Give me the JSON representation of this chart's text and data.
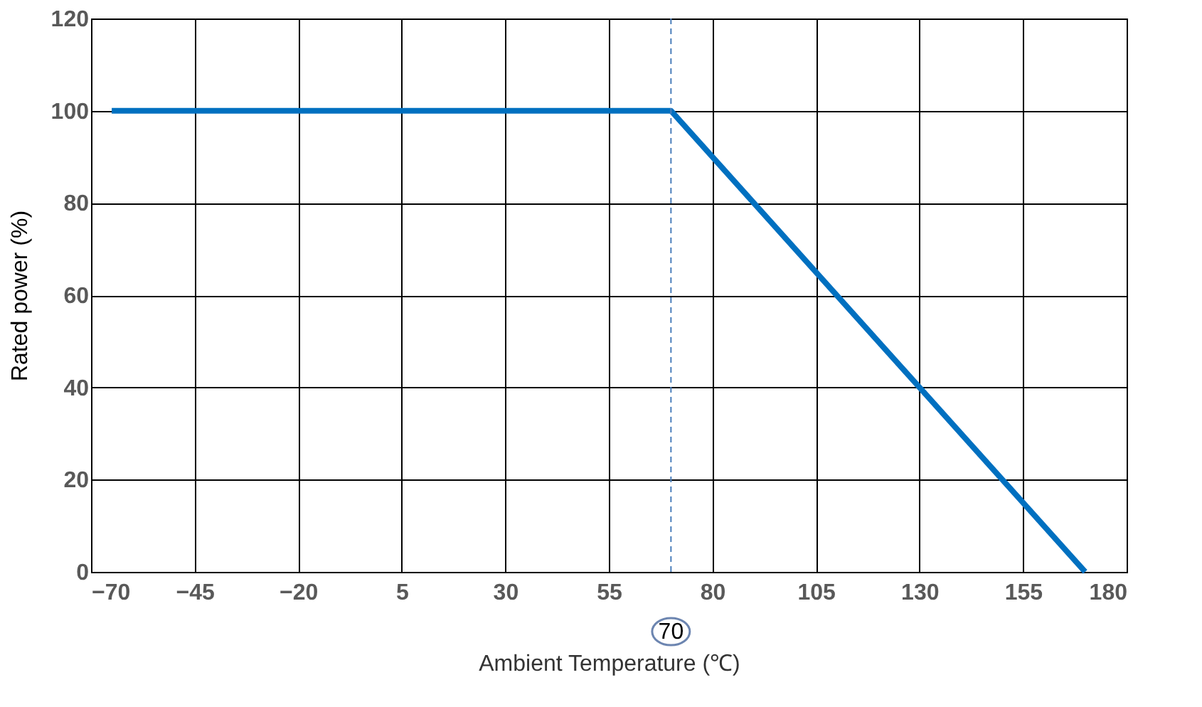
{
  "chart_data": {
    "type": "line",
    "xlabel": "Ambient Temperature (℃)",
    "ylabel": "Rated power (%)",
    "x": [
      -65,
      70,
      170
    ],
    "series": [
      {
        "color": "#0070c0",
        "values": [
          100,
          100,
          0
        ]
      }
    ],
    "xlim": [
      -70,
      180
    ],
    "xticks": [
      -70,
      -45,
      -20,
      5,
      30,
      55,
      80,
      105,
      130,
      155,
      180
    ],
    "ylim": [
      0,
      120
    ],
    "yticks": [
      0,
      20,
      40,
      60,
      80,
      100,
      120
    ],
    "grid": true,
    "marker": "none",
    "line_style": "solid",
    "ref_lines": [
      {
        "axis": "x",
        "value": 70,
        "label": "70",
        "color": "#4a7ebb",
        "line_style": "dashed"
      }
    ]
  }
}
